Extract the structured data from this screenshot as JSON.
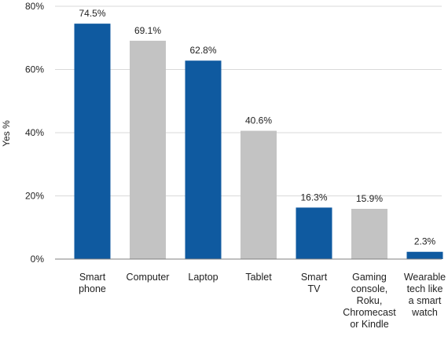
{
  "chart_data": {
    "type": "bar",
    "categories": [
      "Smart phone",
      "Computer",
      "Laptop",
      "Tablet",
      "Smart TV",
      "Gaming console, Roku, Chromecast or Kindle",
      "Wearable tech like a smart watch"
    ],
    "category_lines": [
      [
        "Smart",
        "phone"
      ],
      [
        "Computer"
      ],
      [
        "Laptop"
      ],
      [
        "Tablet"
      ],
      [
        "Smart",
        "TV"
      ],
      [
        "Gaming",
        "console,",
        "Roku,",
        "Chromecast",
        "or Kindle"
      ],
      [
        "Wearable",
        "tech like",
        "a smart",
        "watch"
      ]
    ],
    "values": [
      74.5,
      69.1,
      62.8,
      40.6,
      16.3,
      15.9,
      2.3
    ],
    "value_labels": [
      "74.5%",
      "69.1%",
      "62.8%",
      "40.6%",
      "16.3%",
      "15.9%",
      "2.3%"
    ],
    "bar_colors": [
      "#0f5aa0",
      "#c3c3c3",
      "#0f5aa0",
      "#c3c3c3",
      "#0f5aa0",
      "#c3c3c3",
      "#0f5aa0"
    ],
    "ylabel": "Yes %",
    "ylim": [
      0,
      80
    ],
    "yticks": [
      0,
      20,
      40,
      60,
      80
    ],
    "ytick_labels": [
      "0%",
      "20%",
      "40%",
      "60%",
      "80%"
    ],
    "grid": true
  }
}
